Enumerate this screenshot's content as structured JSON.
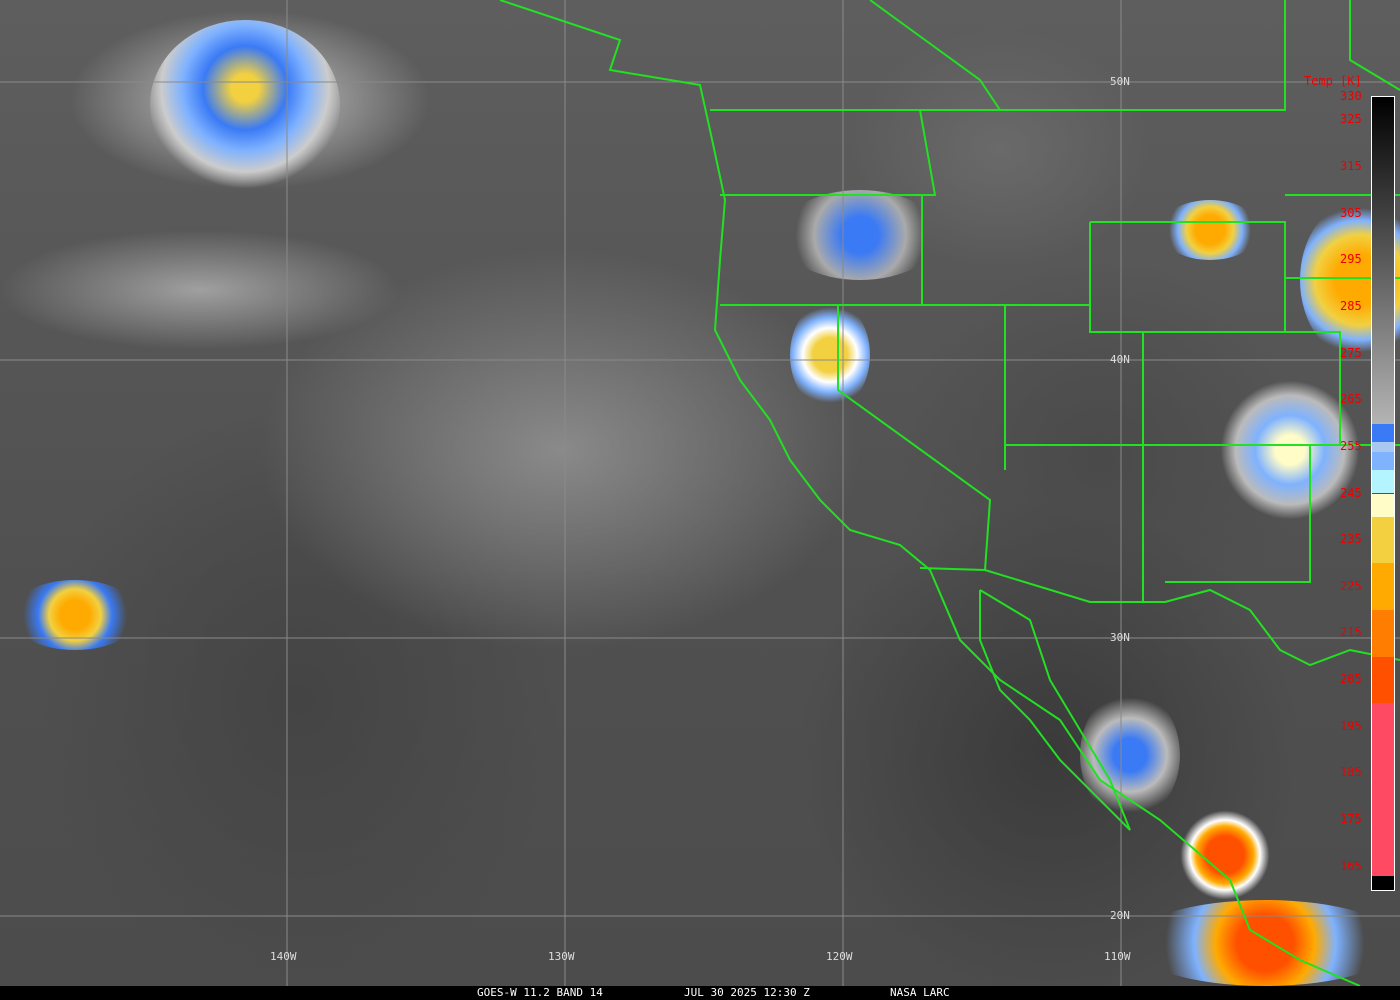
{
  "caption": {
    "satellite": "GOES-W 11.2 BAND 14",
    "datetime": "JUL 30 2025 12:30 Z",
    "source": "NASA LARC"
  },
  "latitude_labels": [
    "50N",
    "40N",
    "30N",
    "20N"
  ],
  "longitude_labels": [
    "140W",
    "130W",
    "120W",
    "110W"
  ],
  "colorbar": {
    "title": "Temp [K]",
    "ticks": [
      "330",
      "325",
      "315",
      "305",
      "295",
      "285",
      "275",
      "265",
      "255",
      "245",
      "235",
      "225",
      "215",
      "205",
      "195",
      "185",
      "175",
      "165"
    ],
    "segments": [
      {
        "from": 330,
        "to": 260,
        "color": "gradient #000000 to #b4b4b4"
      },
      {
        "from": 260,
        "to": 256,
        "color": "#3a7af5"
      },
      {
        "from": 256,
        "to": 254,
        "color": "#a8c8f0"
      },
      {
        "from": 254,
        "to": 250,
        "color": "#7fb2ff"
      },
      {
        "from": 250,
        "to": 245,
        "color": "#b4f4ff"
      },
      {
        "from": 245,
        "to": 240,
        "color": "#fffcc8"
      },
      {
        "from": 240,
        "to": 230,
        "color": "#f2d040"
      },
      {
        "from": 230,
        "to": 220,
        "color": "#ffaa00"
      },
      {
        "from": 220,
        "to": 210,
        "color": "#ff7d00"
      },
      {
        "from": 210,
        "to": 200,
        "color": "#ff5000"
      },
      {
        "from": 200,
        "to": 163,
        "color": "#ff4a64"
      },
      {
        "from": 163,
        "to": 160,
        "color": "#000000"
      }
    ]
  },
  "colors": {
    "borders": "#22e022",
    "grid": "#8a8a8a",
    "labels": "#e00000"
  }
}
